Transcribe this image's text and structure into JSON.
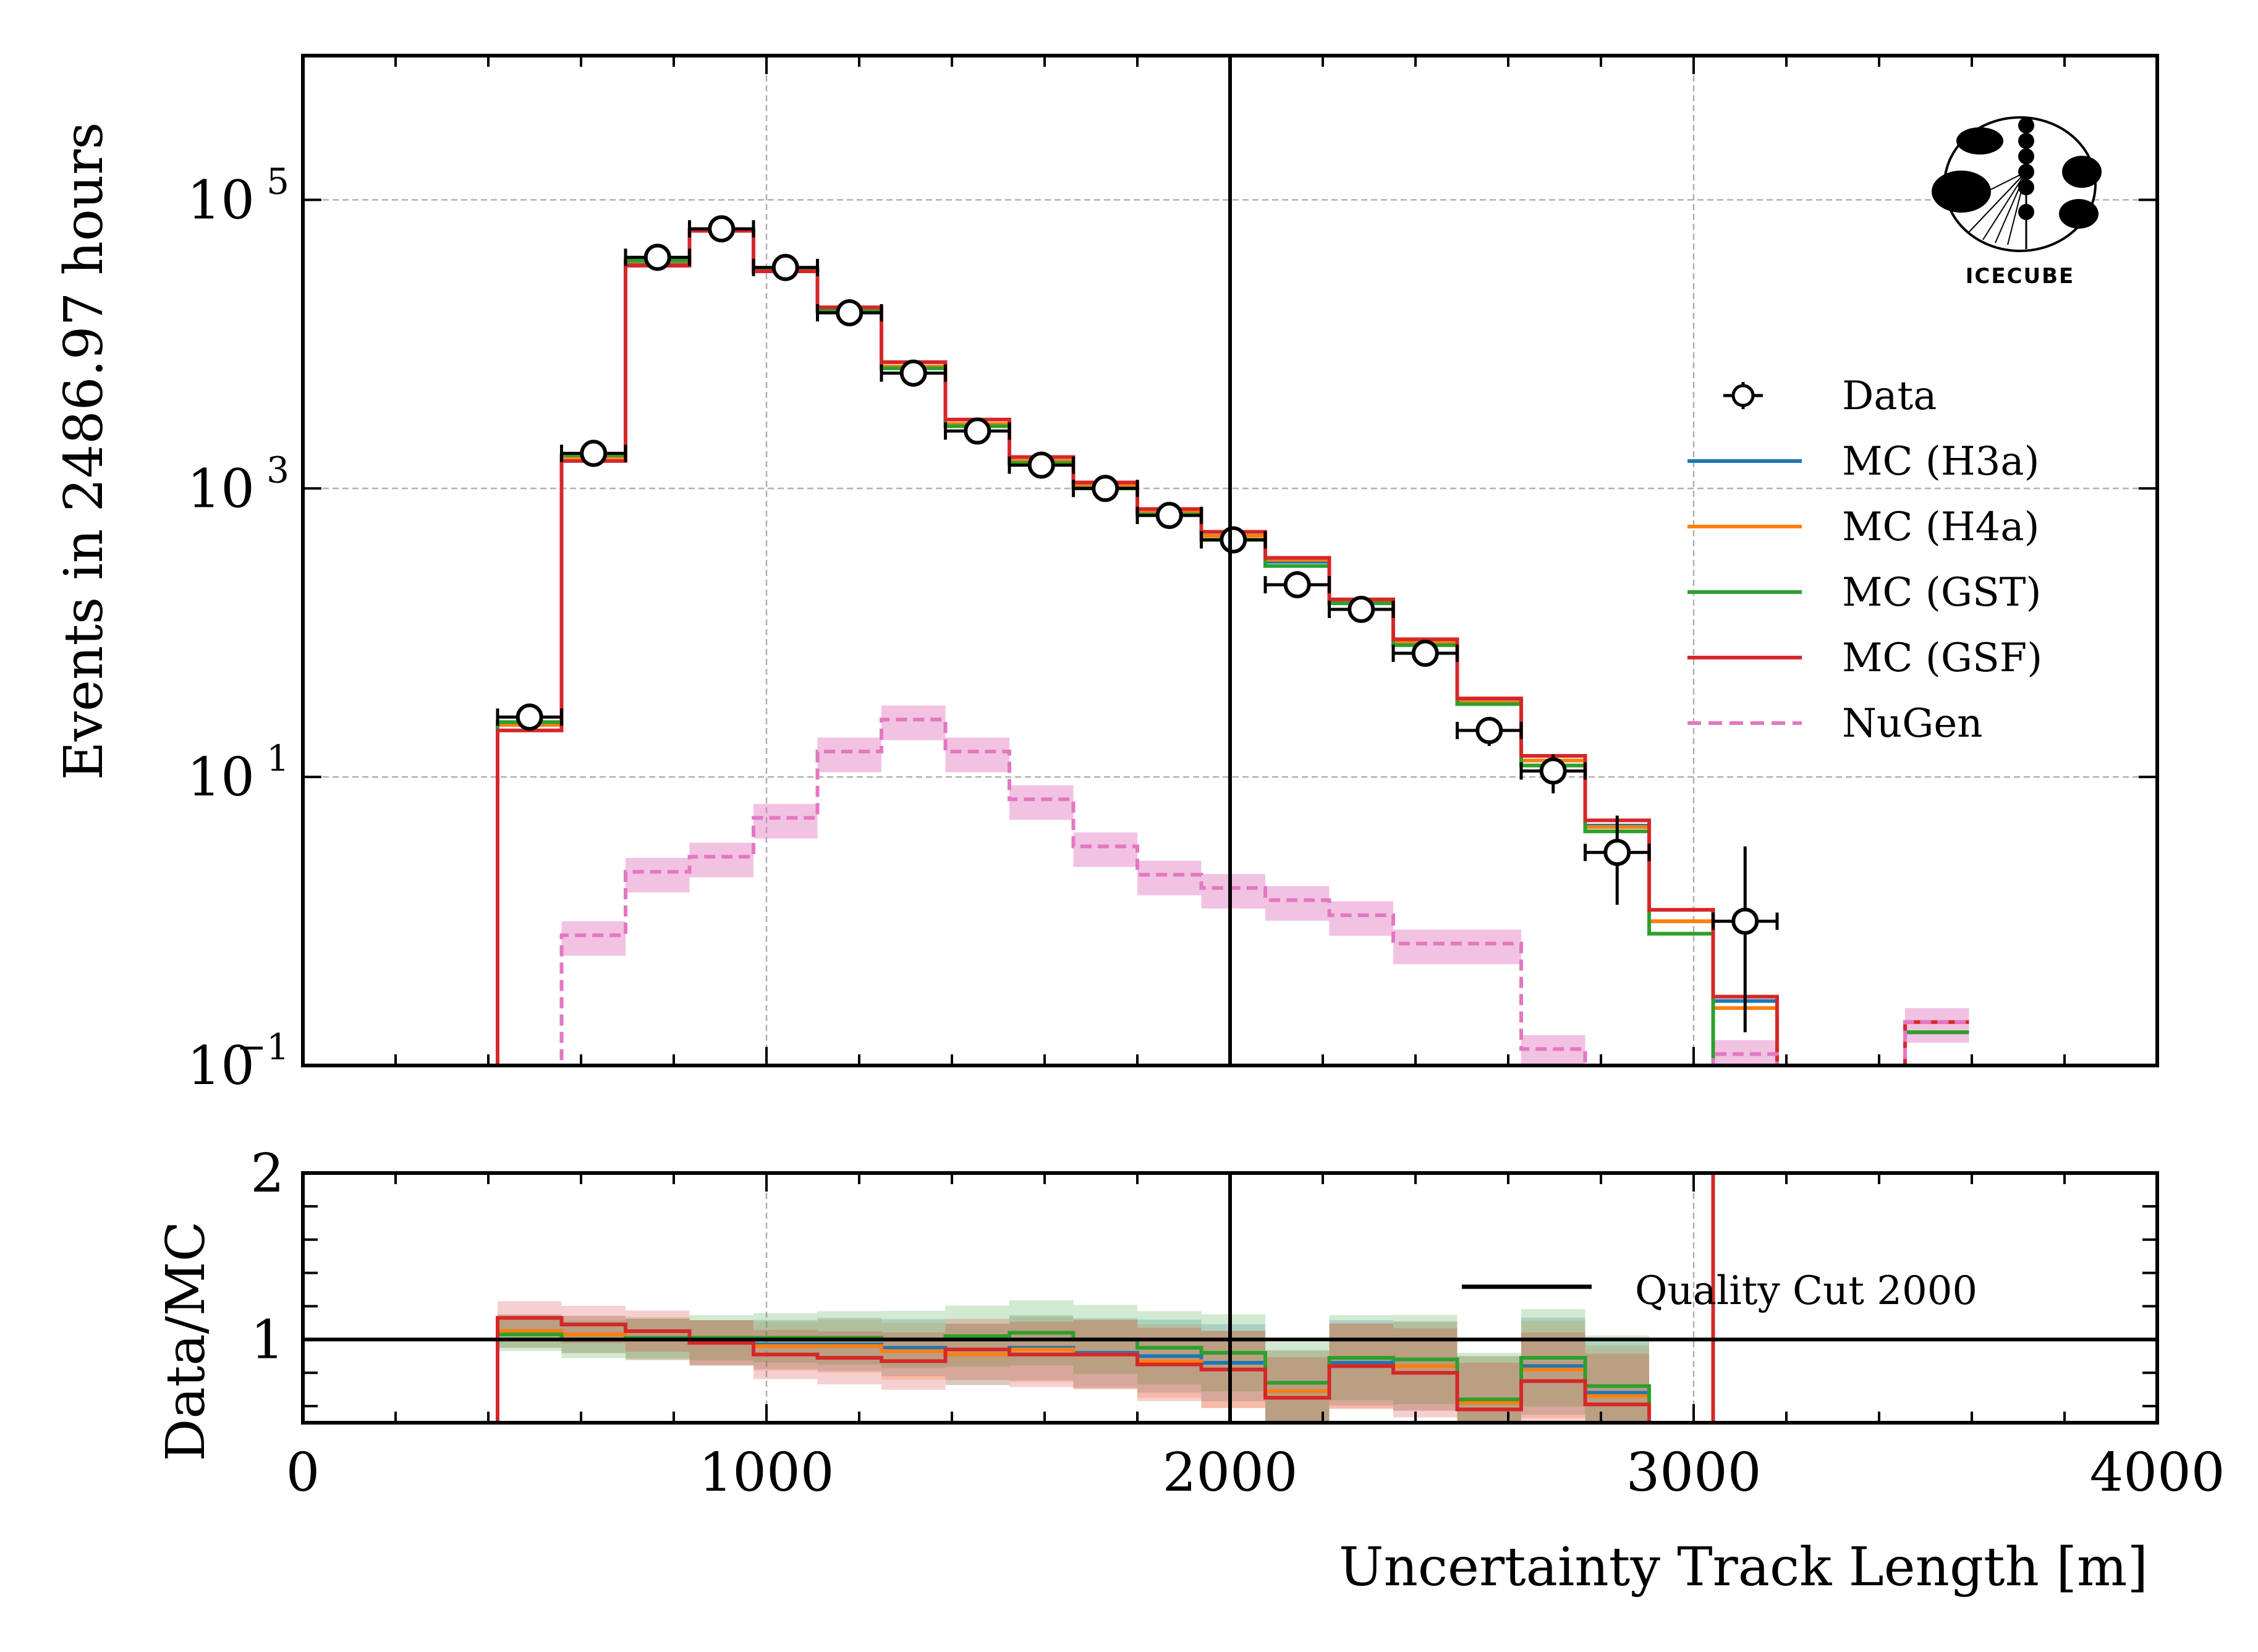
{
  "chart_data": [
    {
      "panel": "main",
      "type": "histogram-step",
      "title": "",
      "xlabel": "Uncertainty Track Length [m]",
      "ylabel": "Events in 2486.97 hours",
      "xlim": [
        0,
        4000
      ],
      "ylim": [
        0.1,
        1000000
      ],
      "yscale": "log",
      "grid": true,
      "x_ticks": [
        "0",
        "1000",
        "2000",
        "3000",
        "4000"
      ],
      "y_ticks": [
        {
          "value": 0.1,
          "base": "10",
          "exp": "−1"
        },
        {
          "value": 10,
          "base": "10",
          "exp": "1"
        },
        {
          "value": 1000,
          "base": "10",
          "exp": "3"
        },
        {
          "value": 100000,
          "base": "10",
          "exp": "5"
        }
      ],
      "bin_edges": [
        420,
        558,
        696,
        834,
        972,
        1110,
        1248,
        1386,
        1524,
        1662,
        1800,
        1938,
        2076,
        2214,
        2352,
        2490,
        2628,
        2766,
        2904,
        3042,
        3180,
        3318,
        3456,
        3594
      ],
      "series": [
        {
          "name": "Data",
          "kind": "points",
          "color": "#000000",
          "values": [
            26,
            1750,
            40000,
            63000,
            34000,
            16500,
            6300,
            2500,
            1450,
            1000,
            650,
            440,
            215,
            145,
            72,
            21,
            11,
            3,
            null,
            1,
            null,
            null,
            null
          ],
          "errors_low": [
            5,
            40,
            200,
            250,
            180,
            130,
            80,
            50,
            38,
            32,
            25,
            21,
            15,
            12,
            8.5,
            4.6,
            3.3,
            1.7,
            null,
            0.83,
            null,
            null,
            null
          ],
          "errors_high": [
            5,
            40,
            200,
            250,
            180,
            130,
            80,
            50,
            38,
            32,
            25,
            21,
            15,
            12,
            8.5,
            4.6,
            3.3,
            2.4,
            null,
            2.3,
            null,
            null,
            null
          ]
        },
        {
          "name": "MC (H3a)",
          "kind": "step",
          "color": "#1f77b4",
          "values": [
            23,
            1650,
            37000,
            62000,
            33000,
            17500,
            7000,
            2750,
            1550,
            1050,
            690,
            470,
            310,
            165,
            85,
            33,
            13,
            4.6,
            1.0,
            0.28,
            null,
            null,
            0.17
          ]
        },
        {
          "name": "MC (H4a)",
          "kind": "step",
          "color": "#ff7f0e",
          "values": [
            23,
            1650,
            37500,
            62000,
            33000,
            17500,
            7000,
            2800,
            1550,
            1050,
            690,
            470,
            320,
            165,
            85,
            33,
            13,
            4.5,
            1.0,
            0.25,
            null,
            null,
            0.17
          ]
        },
        {
          "name": "MC (GST)",
          "kind": "step",
          "color": "#2ca02c",
          "values": [
            24,
            1700,
            38000,
            62000,
            33500,
            17000,
            6800,
            2700,
            1500,
            1000,
            660,
            440,
            290,
            160,
            82,
            32,
            12,
            4.2,
            0.82,
            null,
            null,
            null,
            0.17
          ]
        },
        {
          "name": "MC (GSF)",
          "kind": "step",
          "color": "#d62728",
          "values": [
            21,
            1550,
            35000,
            61000,
            32000,
            18000,
            7500,
            3000,
            1650,
            1100,
            720,
            500,
            330,
            170,
            90,
            35,
            14,
            5.0,
            1.2,
            0.3,
            null,
            null,
            0.2
          ]
        },
        {
          "name": "NuGen",
          "kind": "step-dashed",
          "color": "#e377c2",
          "values": [
            null,
            0.8,
            2.2,
            2.8,
            5.2,
            15,
            25,
            15,
            7.0,
            3.3,
            2.1,
            1.7,
            1.4,
            1.1,
            0.7,
            0.7,
            0.13,
            null,
            null,
            0.12,
            null,
            null,
            0.2
          ]
        }
      ],
      "legend": {
        "position": "right",
        "entries": [
          "Data",
          "MC (H3a)",
          "MC (H4a)",
          "MC (GST)",
          "MC (GSF)",
          "NuGen"
        ]
      },
      "annotations": [
        {
          "type": "vline",
          "x": 2000,
          "label": "Quality Cut 2000"
        }
      ],
      "logo": "IceCube"
    },
    {
      "panel": "ratio",
      "type": "histogram-step",
      "xlabel": "Uncertainty Track Length [m]",
      "ylabel": "Data/MC",
      "xlim": [
        0,
        4000
      ],
      "ylim": [
        0.5,
        2
      ],
      "y_ticks": [
        "1",
        "2"
      ],
      "x_ticks": [
        "0",
        "1000",
        "2000",
        "3000",
        "4000"
      ],
      "bin_edges": [
        420,
        558,
        696,
        834,
        972,
        1110,
        1248,
        1386,
        1524,
        1662,
        1800,
        1938,
        2076,
        2214,
        2352,
        2490,
        2628,
        2766,
        2904,
        3042,
        3180
      ],
      "series": [
        {
          "name": "Data/MC (H3a)",
          "color": "#1f77b4",
          "values": [
            1.05,
            1.03,
            1.0,
            0.98,
            0.97,
            0.97,
            0.95,
            0.91,
            0.95,
            0.92,
            0.9,
            0.86,
            0.69,
            0.86,
            0.84,
            0.62,
            0.84,
            0.68,
            null,
            4.0
          ]
        },
        {
          "name": "Data/MC (H4a)",
          "color": "#ff7f0e",
          "values": [
            1.05,
            1.03,
            1.0,
            0.98,
            0.96,
            0.96,
            0.93,
            0.91,
            0.94,
            0.91,
            0.87,
            0.82,
            0.69,
            0.84,
            0.84,
            0.62,
            0.82,
            0.66,
            null,
            4.0
          ]
        },
        {
          "name": "Data/MC (GST)",
          "color": "#2ca02c",
          "values": [
            1.03,
            1.0,
            1.01,
            1.01,
            1.01,
            1.01,
            1.0,
            1.02,
            1.04,
            1.0,
            0.95,
            0.92,
            0.74,
            0.89,
            0.88,
            0.64,
            0.89,
            0.72,
            null,
            4.0
          ]
        },
        {
          "name": "Data/MC (GSF)",
          "color": "#d62728",
          "values": [
            1.13,
            1.09,
            1.05,
            0.98,
            0.91,
            0.89,
            0.87,
            0.94,
            0.91,
            0.91,
            0.85,
            0.82,
            0.65,
            0.84,
            0.8,
            0.58,
            0.75,
            0.61,
            null,
            4.0
          ]
        }
      ],
      "legend": {
        "position": "center-right",
        "entries": [
          "Quality Cut 2000"
        ]
      },
      "annotations": [
        {
          "type": "hline",
          "y": 1
        },
        {
          "type": "vline",
          "x": 2000
        }
      ]
    }
  ],
  "texts": {
    "ylabel_main": "Events in 2486.97 hours",
    "ylabel_ratio": "Data/MC",
    "xlabel": "Uncertainty Track Length [m]",
    "logo_text": "ICECUBE",
    "quality_cut_label": "Quality Cut 2000"
  }
}
